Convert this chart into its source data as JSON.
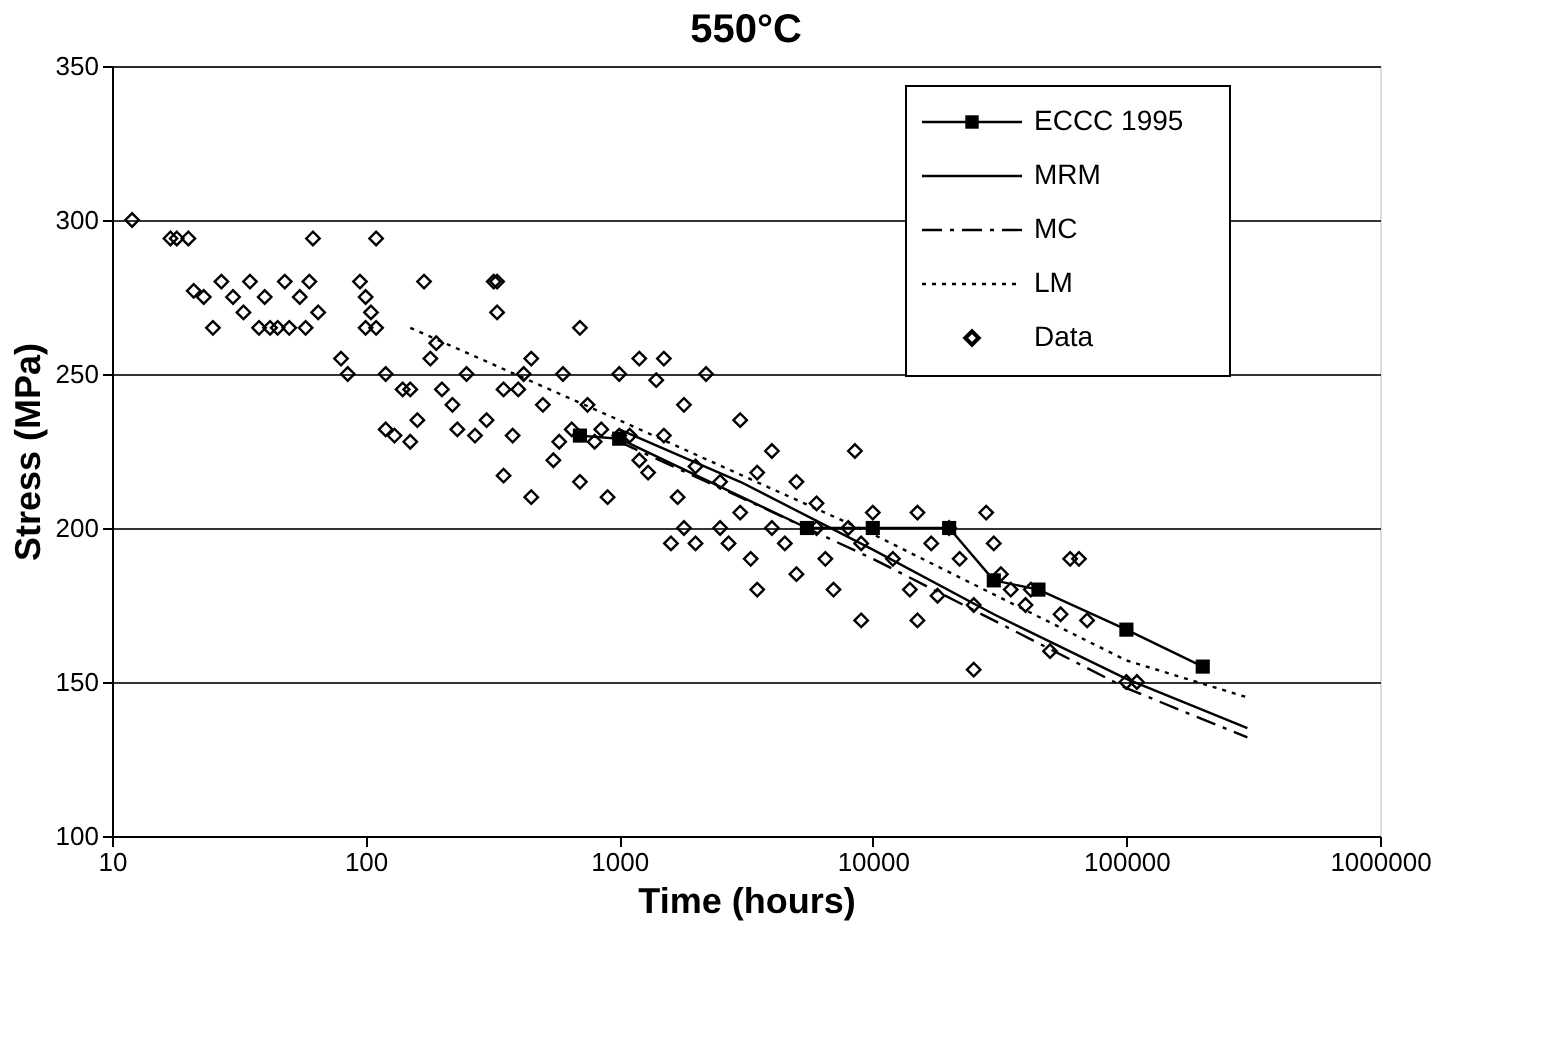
{
  "chart_data": {
    "type": "line",
    "title": "550°C",
    "xlabel": "Time (hours)",
    "ylabel": "Stress (MPa)",
    "log": "x",
    "xlim": [
      10,
      1000000
    ],
    "xticks": [
      10,
      100,
      1000,
      10000,
      100000,
      1000000
    ],
    "ylim": [
      100,
      350
    ],
    "yticks": [
      100,
      150,
      200,
      250,
      300,
      350
    ],
    "grid": "y",
    "legend": "top right",
    "series": [
      {
        "name": "ECCC 1995",
        "color": "#000000",
        "marker": "square",
        "line_style": "solid",
        "x": [
          700,
          1000,
          5500,
          10000,
          20000,
          30000,
          45000,
          100000,
          200000
        ],
        "values": [
          230,
          229,
          200,
          200,
          200,
          183,
          180,
          167,
          155
        ]
      },
      {
        "name": "MRM",
        "color": "#000000",
        "marker": "none",
        "line_style": "solid",
        "x": [
          1000,
          3000,
          10000,
          30000,
          100000,
          300000
        ],
        "values": [
          232,
          215,
          193,
          172,
          151,
          135
        ]
      },
      {
        "name": "MC",
        "color": "#000000",
        "marker": "none",
        "line_style": "dashed",
        "x": [
          1000,
          3000,
          10000,
          30000,
          100000,
          300000
        ],
        "values": [
          228,
          210,
          190,
          170,
          148,
          132
        ]
      },
      {
        "name": "LM",
        "color": "#000000",
        "marker": "none",
        "line_style": "dotted",
        "x": [
          150,
          1000,
          10000,
          100000,
          300000
        ],
        "values": [
          265,
          235,
          198,
          157,
          145
        ]
      },
      {
        "name": "Data",
        "type": "scatter",
        "color": "#000000",
        "marker": "diamond",
        "x": [
          12,
          17,
          18,
          20,
          21,
          23,
          25,
          27,
          30,
          33,
          35,
          38,
          40,
          42,
          45,
          48,
          50,
          55,
          58,
          60,
          62,
          65,
          80,
          85,
          95,
          100,
          100,
          105,
          110,
          110,
          120,
          120,
          130,
          140,
          150,
          150,
          160,
          170,
          180,
          190,
          200,
          220,
          230,
          250,
          270,
          300,
          320,
          330,
          330,
          350,
          350,
          380,
          400,
          420,
          450,
          450,
          500,
          550,
          580,
          600,
          650,
          700,
          700,
          750,
          800,
          850,
          900,
          1000,
          1000,
          1100,
          1200,
          1200,
          1300,
          1400,
          1500,
          1500,
          1600,
          1700,
          1800,
          1800,
          2000,
          2000,
          2200,
          2500,
          2500,
          2700,
          3000,
          3000,
          3300,
          3500,
          3500,
          4000,
          4000,
          4500,
          5000,
          5000,
          6000,
          6000,
          6500,
          7000,
          8000,
          8500,
          9000,
          9000,
          10000,
          12000,
          14000,
          15000,
          15000,
          17000,
          18000,
          20000,
          22000,
          25000,
          25000,
          28000,
          30000,
          32000,
          35000,
          40000,
          42000,
          50000,
          55000,
          60000,
          65000,
          70000,
          100000,
          110000
        ],
        "values": [
          300,
          294,
          294,
          294,
          277,
          275,
          265,
          280,
          275,
          270,
          280,
          265,
          275,
          265,
          265,
          280,
          265,
          275,
          265,
          280,
          294,
          270,
          255,
          250,
          280,
          275,
          265,
          270,
          294,
          265,
          250,
          232,
          230,
          245,
          245,
          228,
          235,
          280,
          255,
          260,
          245,
          240,
          232,
          250,
          230,
          235,
          280,
          280,
          270,
          245,
          217,
          230,
          245,
          250,
          255,
          210,
          240,
          222,
          228,
          250,
          232,
          265,
          215,
          240,
          228,
          232,
          210,
          250,
          230,
          230,
          255,
          222,
          218,
          248,
          255,
          230,
          195,
          210,
          240,
          200,
          220,
          195,
          250,
          215,
          200,
          195,
          235,
          205,
          190,
          218,
          180,
          225,
          200,
          195,
          215,
          185,
          208,
          200,
          190,
          180,
          200,
          225,
          170,
          195,
          205,
          190,
          180,
          205,
          170,
          195,
          178,
          200,
          190,
          175,
          154,
          205,
          195,
          185,
          180,
          175,
          180,
          160,
          172,
          190,
          190,
          170,
          150,
          150
        ]
      }
    ]
  }
}
